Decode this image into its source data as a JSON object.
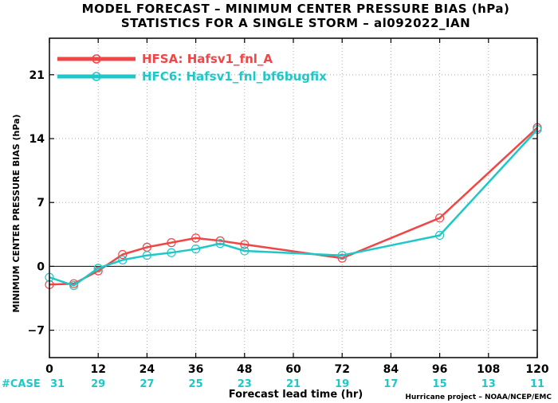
{
  "chart_data": {
    "type": "line",
    "title": "MODEL FORECAST – MINIMUM CENTER PRESSURE BIAS (hPa)",
    "subtitle": "STATISTICS FOR A SINGLE STORM – al092022_IAN",
    "xlabel": "Forecast lead time (hr)",
    "ylabel": "MINIMUM CENTER PRESSURE BIAS (hPa)",
    "xlim": [
      0,
      120
    ],
    "ylim": [
      -10,
      25
    ],
    "xticks": [
      0,
      12,
      24,
      36,
      48,
      60,
      72,
      84,
      96,
      108,
      120
    ],
    "yticks": [
      -7,
      0,
      7,
      14,
      21
    ],
    "grid": true,
    "legend_position": "top-left",
    "series": [
      {
        "name": "HFSA: Hafsv1_fnl_A",
        "color": "#f04646",
        "x": [
          0,
          6,
          12,
          18,
          24,
          30,
          36,
          42,
          48,
          72,
          96,
          120
        ],
        "y": [
          -2.0,
          -1.9,
          -0.5,
          1.3,
          2.1,
          2.6,
          3.1,
          2.8,
          2.4,
          0.9,
          5.3,
          15.2
        ]
      },
      {
        "name": "HFC6: Hafsv1_fnl_bf6bugfix",
        "color": "#1ec8c8",
        "x": [
          0,
          6,
          12,
          18,
          24,
          30,
          36,
          42,
          48,
          72,
          96,
          120
        ],
        "y": [
          -1.2,
          -2.1,
          -0.2,
          0.7,
          1.2,
          1.5,
          1.9,
          2.5,
          1.7,
          1.2,
          3.4,
          15.0
        ]
      }
    ],
    "case_label": "#CASE",
    "case_label_color": "#1ec8c8",
    "cases": [
      "31",
      "29",
      "27",
      "25",
      "23",
      "21",
      "19",
      "17",
      "15",
      "13",
      "11"
    ],
    "credit": "Hurricane project – NOAA/NCEP/EMC"
  }
}
